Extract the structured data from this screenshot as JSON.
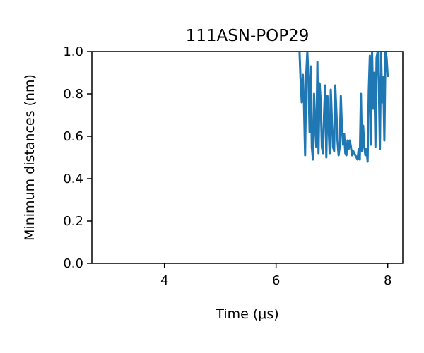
{
  "chart_data": {
    "type": "line",
    "title": "111ASN-POP29",
    "xlabel": "Time (μs)",
    "ylabel": "Minimum distances (nm)",
    "xlim": [
      2.7,
      8.27
    ],
    "ylim": [
      0.0,
      1.0
    ],
    "xticks": [
      4,
      6,
      8
    ],
    "xtick_labels": [
      "4",
      "6",
      "8"
    ],
    "yticks": [
      0.0,
      0.2,
      0.4,
      0.6,
      0.8,
      1.0
    ],
    "ytick_labels": [
      "0.0",
      "0.2",
      "0.4",
      "0.6",
      "0.8",
      "1.0"
    ],
    "grid": false,
    "series": [
      {
        "color": "#1f77b4",
        "x": [
          6.42,
          6.44,
          6.46,
          6.48,
          6.5,
          6.52,
          6.54,
          6.56,
          6.58,
          6.6,
          6.62,
          6.64,
          6.66,
          6.68,
          6.7,
          6.72,
          6.74,
          6.76,
          6.78,
          6.8,
          6.82,
          6.84,
          6.86,
          6.88,
          6.9,
          6.92,
          6.94,
          6.96,
          6.98,
          7.0,
          7.02,
          7.04,
          7.06,
          7.08,
          7.1,
          7.12,
          7.14,
          7.16,
          7.18,
          7.2,
          7.22,
          7.24,
          7.26,
          7.28,
          7.3,
          7.32,
          7.34,
          7.36,
          7.38,
          7.4,
          7.42,
          7.44,
          7.46,
          7.48,
          7.5,
          7.52,
          7.54,
          7.56,
          7.58,
          7.6,
          7.62,
          7.64,
          7.66,
          7.68,
          7.7,
          7.72,
          7.74,
          7.76,
          7.78,
          7.8,
          7.82,
          7.84,
          7.86,
          7.88,
          7.9,
          7.92,
          7.94,
          7.96,
          7.98,
          8.0
        ],
        "y": [
          1.0,
          0.86,
          0.76,
          0.89,
          0.75,
          0.51,
          0.89,
          1.0,
          0.87,
          0.62,
          0.93,
          0.55,
          0.49,
          0.8,
          0.64,
          0.55,
          0.95,
          0.52,
          0.85,
          0.76,
          0.55,
          0.52,
          0.71,
          0.84,
          0.5,
          0.79,
          0.65,
          0.52,
          0.82,
          0.68,
          0.55,
          0.53,
          0.84,
          0.72,
          0.58,
          0.51,
          0.55,
          0.79,
          0.64,
          0.56,
          0.61,
          0.52,
          0.51,
          0.58,
          0.54,
          0.58,
          0.55,
          0.51,
          0.53,
          0.52,
          0.51,
          0.5,
          0.49,
          0.54,
          0.49,
          0.8,
          0.53,
          0.65,
          0.55,
          0.51,
          0.54,
          0.48,
          0.81,
          0.98,
          0.56,
          1.0,
          0.73,
          0.9,
          0.55,
          0.97,
          1.0,
          0.85,
          0.54,
          1.0,
          0.76,
          0.88,
          0.58,
          1.0,
          0.97,
          0.88
        ]
      }
    ]
  }
}
